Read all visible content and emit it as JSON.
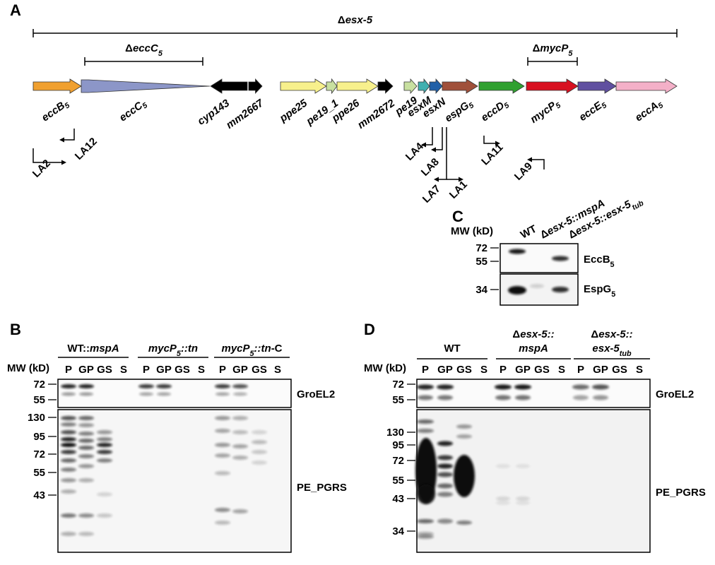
{
  "panel_a": {
    "label": "A",
    "spans": [
      [
        {
          "t": "Δ"
        },
        {
          "t": "esx-5",
          "i": true
        }
      ],
      [
        {
          "t": "Δ"
        },
        {
          "t": "eccC",
          "i": true
        },
        {
          "t": "5",
          "i": true,
          "sub": true
        }
      ],
      [
        {
          "t": "Δ"
        },
        {
          "t": "mycP",
          "i": true
        },
        {
          "t": "5",
          "i": true,
          "sub": true
        }
      ]
    ],
    "genes": [
      [
        {
          "t": "eccB",
          "i": true
        },
        {
          "t": "5",
          "i": true,
          "sub": true
        }
      ],
      [
        {
          "t": "eccC",
          "i": true
        },
        {
          "t": "5",
          "i": true,
          "sub": true
        }
      ],
      [
        {
          "t": "cyp143",
          "i": true
        }
      ],
      [
        {
          "t": "mm2667",
          "i": true
        }
      ],
      [
        {
          "t": "ppe25",
          "i": true
        }
      ],
      [
        {
          "t": "pe19_1",
          "i": true
        }
      ],
      [
        {
          "t": "ppe26",
          "i": true
        }
      ],
      [
        {
          "t": "mm2672",
          "i": true
        }
      ],
      [
        {
          "t": "pe19",
          "i": true
        }
      ],
      [
        {
          "t": "esxM",
          "i": true
        }
      ],
      [
        {
          "t": "esxN",
          "i": true
        }
      ],
      [
        {
          "t": "espG",
          "i": true
        },
        {
          "t": "5",
          "i": true,
          "sub": true
        }
      ],
      [
        {
          "t": "eccD",
          "i": true
        },
        {
          "t": "5",
          "i": true,
          "sub": true
        }
      ],
      [
        {
          "t": "mycP",
          "i": true
        },
        {
          "t": "5",
          "i": true,
          "sub": true
        }
      ],
      [
        {
          "t": "eccE",
          "i": true
        },
        {
          "t": "5",
          "i": true,
          "sub": true
        }
      ],
      [
        {
          "t": "eccA",
          "i": true
        },
        {
          "t": "5",
          "i": true,
          "sub": true
        }
      ]
    ],
    "primers": [
      "LA2",
      "LA12",
      "LA4",
      "LA8",
      "LA7",
      "LA1",
      "LA11",
      "LA9"
    ]
  },
  "panel_b": {
    "label": "B",
    "mw_header": "MW (kD)",
    "groups": [
      [
        [
          {
            "t": "WT::"
          },
          {
            "t": "mspA",
            "i": true
          }
        ]
      ],
      [
        [
          {
            "t": "mycP",
            "i": true
          },
          {
            "t": "5",
            "i": true,
            "sub": true
          },
          {
            "t": "::tn",
            "i": true
          }
        ]
      ],
      [
        [
          {
            "t": "mycP",
            "i": true
          },
          {
            "t": "5",
            "i": true,
            "sub": true
          },
          {
            "t": "::tn",
            "i": true
          },
          {
            "t": "-C"
          }
        ]
      ]
    ],
    "lanes": [
      "P",
      "GP",
      "GS",
      "S"
    ],
    "groel_markers": [
      "72",
      "55"
    ],
    "pgrs_markers": [
      "130",
      "95",
      "72",
      "55",
      "43"
    ],
    "blots": [
      "GroEL2",
      "PE_PGRS"
    ]
  },
  "panel_c": {
    "label": "C",
    "mw_header": "MW (kD)",
    "lanes": [
      [
        {
          "t": "WT"
        }
      ],
      [
        {
          "t": "Δ"
        },
        {
          "t": "esx-5::mspA",
          "i": true
        }
      ],
      [
        {
          "t": "Δ"
        },
        {
          "t": "esx-5::esx-5",
          "i": true
        },
        {
          "t": "tub",
          "i": true,
          "sub": true
        }
      ]
    ],
    "top_markers": [
      "72",
      "55"
    ],
    "bottom_markers": [
      "34"
    ],
    "blots": [
      [
        {
          "t": "EccB"
        },
        {
          "t": "5",
          "sub": true
        }
      ],
      [
        {
          "t": "EspG"
        },
        {
          "t": "5",
          "sub": true
        }
      ]
    ]
  },
  "panel_d": {
    "label": "D",
    "mw_header": "MW (kD)",
    "groups": [
      [
        [
          {
            "t": "WT"
          }
        ]
      ],
      [
        [
          {
            "t": "Δ"
          },
          {
            "t": "esx-5::",
            "i": true
          }
        ],
        [
          {
            "t": "mspA",
            "i": true
          }
        ]
      ],
      [
        [
          {
            "t": "Δ"
          },
          {
            "t": "esx-5::",
            "i": true
          }
        ],
        [
          {
            "t": "esx-5",
            "i": true
          },
          {
            "t": "tub",
            "i": true,
            "sub": true
          }
        ]
      ]
    ],
    "lanes": [
      "P",
      "GP",
      "GS",
      "S"
    ],
    "groel_markers": [
      "72",
      "55"
    ],
    "pgrs_markers": [
      "130",
      "95",
      "72",
      "55",
      "43",
      "34"
    ],
    "blots": [
      "GroEL2",
      "PE_PGRS"
    ]
  }
}
